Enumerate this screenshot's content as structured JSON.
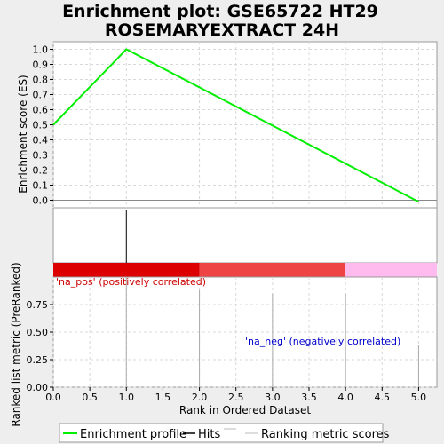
{
  "chart_data": {
    "type": "line",
    "title_line1": "Enrichment plot: GSE65722 HT29",
    "title_line2": "ROSEMARYEXTRACT 24H",
    "es_panel": {
      "ylabel": "Enrichment score (ES)",
      "ylim": [
        -0.05,
        1.05
      ],
      "yticks": [
        "0.0",
        "0.1",
        "0.2",
        "0.3",
        "0.4",
        "0.5",
        "0.6",
        "0.7",
        "0.8",
        "0.9",
        "1.0"
      ],
      "series": [
        {
          "name": "Enrichment profile",
          "color": "#00ee00",
          "x": [
            0,
            1,
            5
          ],
          "y": [
            0.5,
            1.0,
            -0.01
          ]
        }
      ]
    },
    "hits_panel": {
      "hits_x": [
        1
      ]
    },
    "ranking_bar": {
      "segments": [
        {
          "from": 0,
          "to": 2,
          "color": "#dd0000"
        },
        {
          "from": 2,
          "to": 4,
          "color": "#ee4444"
        },
        {
          "from": 4,
          "to": 5.25,
          "color": "#ffbbee"
        }
      ]
    },
    "metric_panel": {
      "ylabel": "Ranked list metric (PreRanked)",
      "ylim": [
        0,
        1
      ],
      "yticks": [
        "0.00",
        "0.25",
        "0.50",
        "0.75"
      ],
      "values_x": [
        1,
        2,
        3,
        4,
        5
      ],
      "values_y": [
        1.0,
        0.88,
        0.85,
        0.85,
        0.38
      ],
      "pos_label": "'na_pos' (positively correlated)",
      "neg_label": "'na_neg' (negatively correlated)",
      "pos_color": "#cc0000",
      "neg_color": "#0000cc"
    },
    "x_axis": {
      "xlabel": "Rank in Ordered Dataset",
      "xlim": [
        0,
        5.25
      ],
      "xticks": [
        "0.0",
        "0.5",
        "1.0",
        "1.5",
        "2.0",
        "2.5",
        "3.0",
        "3.5",
        "4.0",
        "4.5",
        "5.0"
      ]
    },
    "legend": {
      "items": [
        "Enrichment profile",
        "Hits",
        "Ranking metric scores"
      ]
    }
  }
}
